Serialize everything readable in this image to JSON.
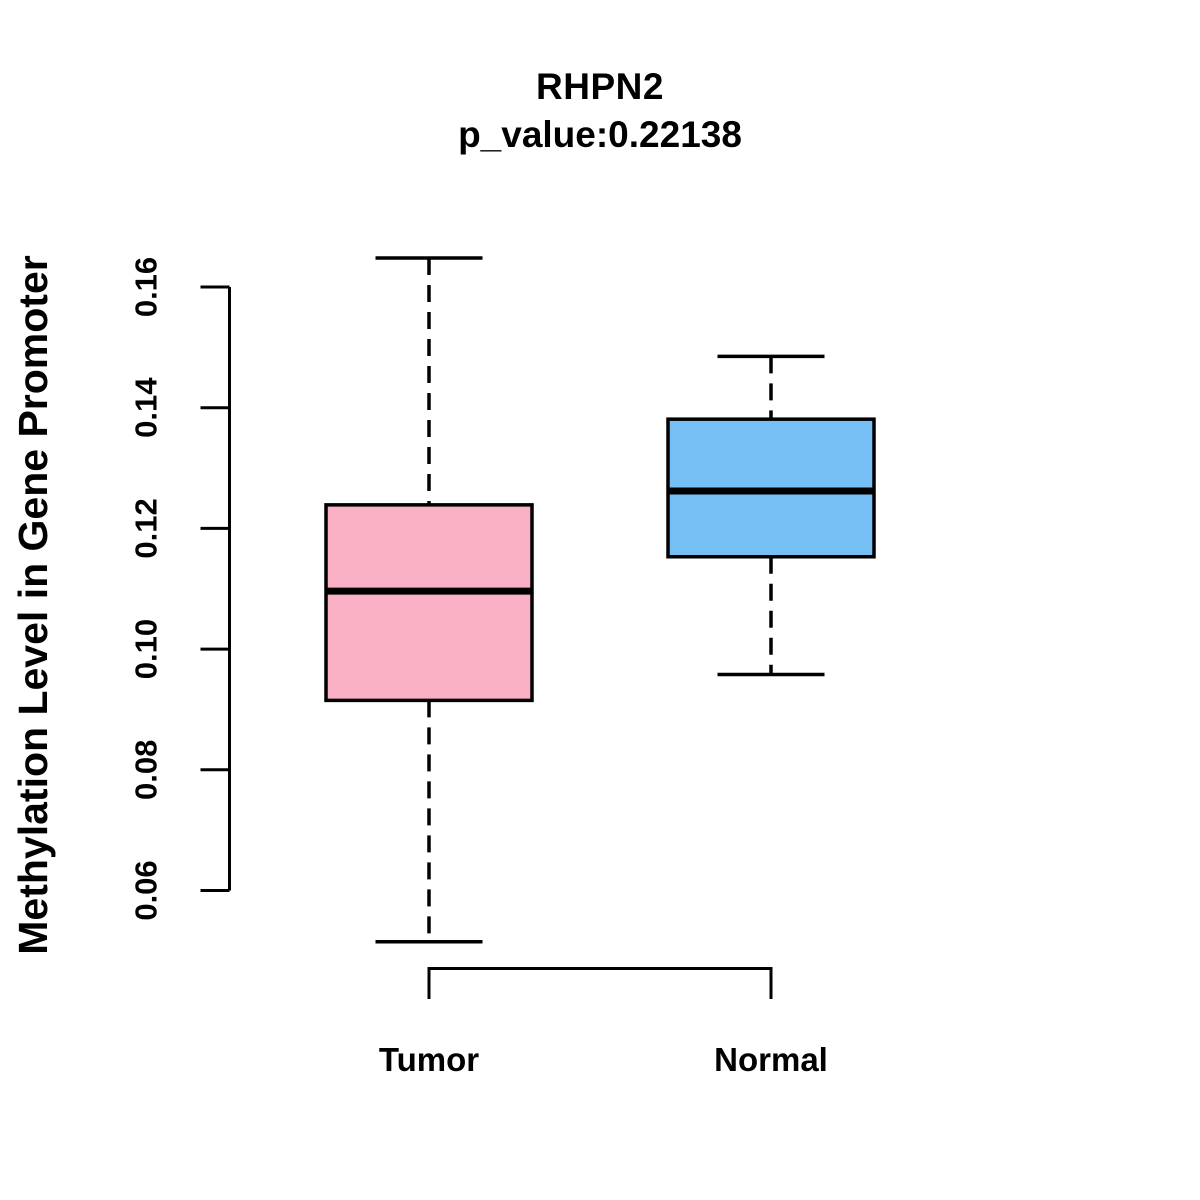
{
  "chart_data": {
    "type": "boxplot",
    "title": "RHPN2",
    "subtitle": "p_value:0.22138",
    "ylabel": "Methylation Level in Gene Promoter",
    "categories": [
      "Tumor",
      "Normal"
    ],
    "yticks": [
      0.16,
      0.14,
      0.12,
      0.1,
      0.08,
      0.06
    ],
    "ytick_labels": [
      "0.16",
      "0.14",
      "0.12",
      "0.10",
      "0.08",
      "0.06"
    ],
    "axis_range": [
      0.06,
      0.16
    ],
    "grid": "off",
    "colors": {
      "tumor_fill": "#FBB1C5",
      "normal_fill": "#76BFF5",
      "line": "#000000",
      "background": "#FFFFFF"
    },
    "series": [
      {
        "name": "Tumor",
        "color": "#FBB1C5",
        "upper_whisker": 0.1648,
        "q3": 0.1239,
        "median": 0.1096,
        "q1": 0.0915,
        "lower_whisker": 0.0515
      },
      {
        "name": "Normal",
        "color": "#76BFF5",
        "upper_whisker": 0.1485,
        "q3": 0.1381,
        "median": 0.1262,
        "q1": 0.1153,
        "lower_whisker": 0.0958
      }
    ]
  }
}
